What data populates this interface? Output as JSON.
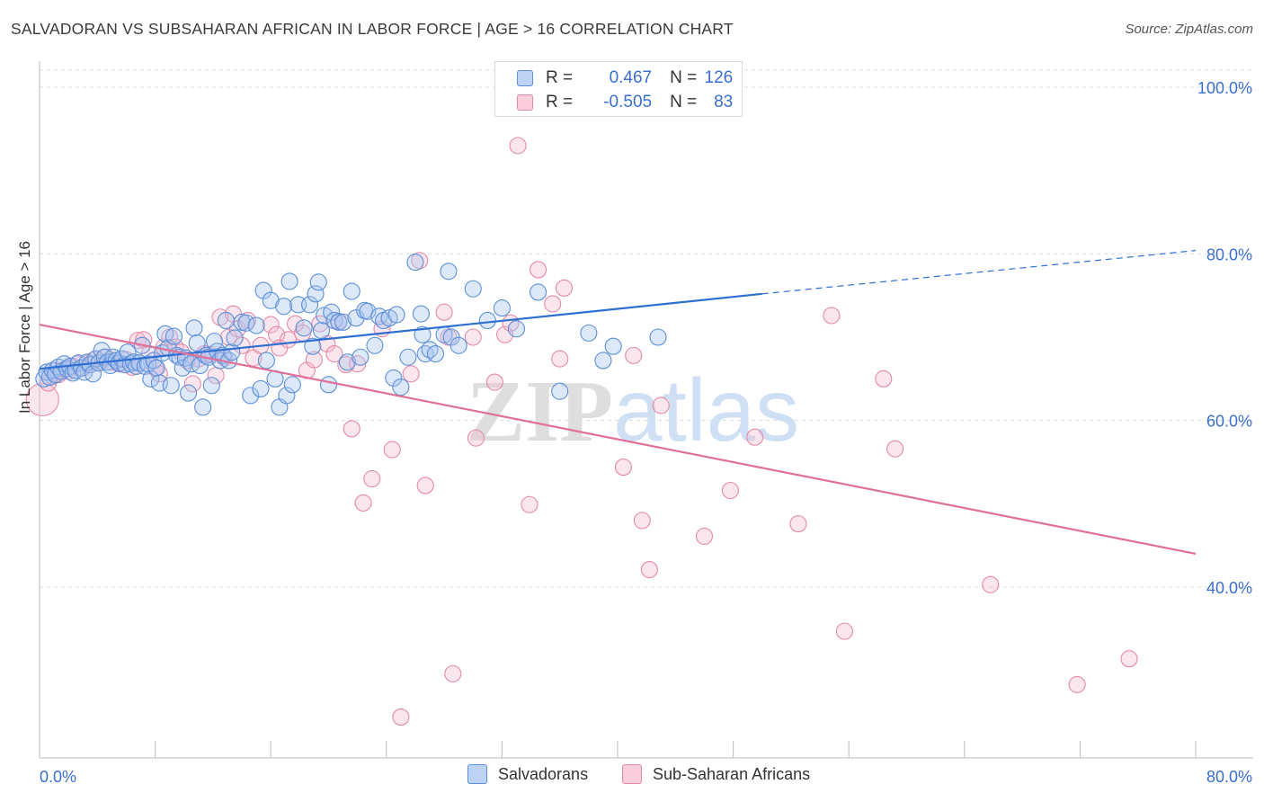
{
  "title": "SALVADORAN VS SUBSAHARAN AFRICAN IN LABOR FORCE | AGE > 16 CORRELATION CHART",
  "source": "Source: ZipAtlas.com",
  "watermark": "ZIPatlas",
  "legend": {
    "rows": [
      {
        "r_label": "R =",
        "r_value": "0.467",
        "n_label": "N =",
        "n_value": "126"
      },
      {
        "r_label": "R =",
        "r_value": "-0.505",
        "n_label": "N =",
        "n_value": "83"
      }
    ]
  },
  "colors": {
    "blue_fill": "#a9c6f0",
    "blue_stroke": "#5b8fd9",
    "blue_line": "#2f6fd1",
    "pink_fill": "#f5b8cc",
    "pink_stroke": "#e489a8",
    "pink_line": "#e0709a",
    "tick_text": "#3a6fcf",
    "grid": "#dcdcdc"
  },
  "chart_data": {
    "type": "scatter",
    "title": "SALVADORAN VS SUBSAHARAN AFRICAN IN LABOR FORCE | AGE > 16 CORRELATION CHART",
    "xlabel": "",
    "ylabel": "In Labor Force | Age > 16",
    "xlim": [
      0,
      80
    ],
    "ylim": [
      20,
      102
    ],
    "x_tick_labels": [
      "0.0%",
      "80.0%"
    ],
    "y_ticks": [
      40,
      60,
      80,
      100
    ],
    "y_tick_labels": [
      "40.0%",
      "60.0%",
      "80.0%",
      "100.0%"
    ],
    "grid": true,
    "legend_position": "bottom",
    "series": [
      {
        "name": "Salvadorans",
        "color": "#5b8fd9",
        "trend": {
          "x": [
            0,
            50
          ],
          "y": [
            66.2,
            75.2
          ],
          "dashed_to": [
            80,
            80.4
          ]
        },
        "points": [
          [
            0.3,
            65.0
          ],
          [
            0.5,
            65.8
          ],
          [
            0.7,
            65.2
          ],
          [
            0.9,
            66.0
          ],
          [
            1.1,
            65.5
          ],
          [
            1.3,
            66.4
          ],
          [
            1.5,
            65.9
          ],
          [
            1.7,
            66.8
          ],
          [
            1.9,
            66.2
          ],
          [
            2.1,
            66.5
          ],
          [
            2.3,
            65.7
          ],
          [
            2.5,
            66.0
          ],
          [
            2.7,
            66.9
          ],
          [
            2.9,
            66.3
          ],
          [
            3.1,
            65.8
          ],
          [
            3.3,
            67.0
          ],
          [
            3.5,
            66.7
          ],
          [
            3.7,
            65.6
          ],
          [
            3.9,
            67.4
          ],
          [
            4.1,
            66.9
          ],
          [
            4.3,
            68.4
          ],
          [
            4.5,
            67.6
          ],
          [
            4.7,
            67.0
          ],
          [
            4.9,
            66.6
          ],
          [
            5.1,
            67.6
          ],
          [
            5.3,
            67.2
          ],
          [
            5.5,
            66.9
          ],
          [
            5.7,
            67.4
          ],
          [
            5.9,
            66.7
          ],
          [
            6.1,
            68.2
          ],
          [
            6.3,
            66.8
          ],
          [
            6.5,
            67.0
          ],
          [
            6.7,
            66.5
          ],
          [
            6.9,
            66.9
          ],
          [
            7.1,
            69.0
          ],
          [
            7.3,
            66.5
          ],
          [
            7.5,
            66.8
          ],
          [
            7.7,
            65.0
          ],
          [
            7.9,
            67.2
          ],
          [
            8.1,
            66.3
          ],
          [
            8.3,
            64.5
          ],
          [
            8.5,
            68.1
          ],
          [
            8.7,
            70.4
          ],
          [
            8.9,
            68.7
          ],
          [
            9.1,
            64.2
          ],
          [
            9.3,
            70.1
          ],
          [
            9.5,
            67.8
          ],
          [
            9.7,
            67.6
          ],
          [
            9.9,
            66.3
          ],
          [
            10.1,
            67.5
          ],
          [
            10.3,
            63.3
          ],
          [
            10.5,
            66.8
          ],
          [
            10.7,
            71.1
          ],
          [
            10.9,
            69.3
          ],
          [
            11.1,
            66.6
          ],
          [
            11.3,
            61.6
          ],
          [
            11.5,
            67.8
          ],
          [
            11.7,
            67.6
          ],
          [
            11.9,
            64.2
          ],
          [
            12.1,
            69.5
          ],
          [
            12.3,
            68.3
          ],
          [
            12.5,
            67.2
          ],
          [
            12.7,
            67.8
          ],
          [
            12.9,
            72.0
          ],
          [
            13.1,
            67.2
          ],
          [
            13.3,
            68.2
          ],
          [
            13.5,
            69.9
          ],
          [
            14.0,
            71.8
          ],
          [
            14.3,
            71.7
          ],
          [
            14.6,
            63.0
          ],
          [
            15.0,
            71.4
          ],
          [
            15.3,
            63.8
          ],
          [
            15.5,
            75.6
          ],
          [
            15.7,
            67.2
          ],
          [
            16.0,
            74.4
          ],
          [
            16.3,
            65.0
          ],
          [
            16.6,
            61.6
          ],
          [
            16.9,
            73.7
          ],
          [
            17.1,
            63.0
          ],
          [
            17.3,
            76.7
          ],
          [
            17.5,
            64.3
          ],
          [
            17.9,
            73.9
          ],
          [
            18.3,
            71.1
          ],
          [
            18.7,
            73.9
          ],
          [
            18.9,
            68.9
          ],
          [
            19.1,
            75.2
          ],
          [
            19.3,
            76.6
          ],
          [
            19.5,
            70.8
          ],
          [
            19.7,
            72.6
          ],
          [
            20.0,
            64.3
          ],
          [
            20.2,
            73.0
          ],
          [
            20.4,
            72.0
          ],
          [
            20.7,
            71.8
          ],
          [
            21.0,
            71.8
          ],
          [
            21.3,
            67.0
          ],
          [
            21.6,
            75.5
          ],
          [
            21.9,
            72.3
          ],
          [
            22.2,
            67.6
          ],
          [
            22.5,
            73.2
          ],
          [
            22.7,
            73.1
          ],
          [
            23.2,
            69.0
          ],
          [
            23.5,
            72.5
          ],
          [
            23.8,
            72.0
          ],
          [
            24.2,
            72.3
          ],
          [
            24.5,
            65.1
          ],
          [
            24.7,
            72.7
          ],
          [
            25.0,
            64.0
          ],
          [
            25.5,
            67.6
          ],
          [
            26.0,
            79.0
          ],
          [
            26.4,
            72.8
          ],
          [
            26.5,
            70.3
          ],
          [
            26.7,
            68.0
          ],
          [
            27.0,
            68.5
          ],
          [
            27.4,
            68.0
          ],
          [
            28.0,
            70.3
          ],
          [
            28.3,
            77.9
          ],
          [
            28.5,
            70.0
          ],
          [
            29.0,
            69.0
          ],
          [
            30.0,
            75.8
          ],
          [
            31.0,
            72.0
          ],
          [
            32.0,
            73.5
          ],
          [
            33.0,
            71.0
          ],
          [
            34.5,
            75.4
          ],
          [
            36.0,
            63.5
          ],
          [
            38.0,
            70.5
          ],
          [
            39.0,
            67.2
          ],
          [
            39.7,
            68.9
          ],
          [
            42.8,
            70.0
          ]
        ]
      },
      {
        "name": "Sub-Saharan Africans",
        "color": "#e489a8",
        "trend": {
          "x": [
            0,
            80
          ],
          "y": [
            71.5,
            44.0
          ]
        },
        "points": [
          [
            0.2,
            62.5
          ],
          [
            0.6,
            64.5
          ],
          [
            0.9,
            65.3
          ],
          [
            1.1,
            66.0
          ],
          [
            1.3,
            65.5
          ],
          [
            1.7,
            66.1
          ],
          [
            2.0,
            65.9
          ],
          [
            2.3,
            66.5
          ],
          [
            2.6,
            66.8
          ],
          [
            3.0,
            66.3
          ],
          [
            3.4,
            66.9
          ],
          [
            3.8,
            67.3
          ],
          [
            4.2,
            67.1
          ],
          [
            4.6,
            67.6
          ],
          [
            5.0,
            67.0
          ],
          [
            5.5,
            66.8
          ],
          [
            6.0,
            67.3
          ],
          [
            6.4,
            66.4
          ],
          [
            6.8,
            69.6
          ],
          [
            7.2,
            69.7
          ],
          [
            7.6,
            68.0
          ],
          [
            8.0,
            66.3
          ],
          [
            8.3,
            65.6
          ],
          [
            8.6,
            68.8
          ],
          [
            9.0,
            70.0
          ],
          [
            9.4,
            68.8
          ],
          [
            9.8,
            68.2
          ],
          [
            10.2,
            67.2
          ],
          [
            10.6,
            64.4
          ],
          [
            11.0,
            67.4
          ],
          [
            11.4,
            68.0
          ],
          [
            11.8,
            67.9
          ],
          [
            12.2,
            65.4
          ],
          [
            12.5,
            72.4
          ],
          [
            12.8,
            67.5
          ],
          [
            13.1,
            70.0
          ],
          [
            13.4,
            72.8
          ],
          [
            13.7,
            71.0
          ],
          [
            14.0,
            69.0
          ],
          [
            14.4,
            72.0
          ],
          [
            14.8,
            67.5
          ],
          [
            15.3,
            69.0
          ],
          [
            16.0,
            71.5
          ],
          [
            16.4,
            70.3
          ],
          [
            16.6,
            68.7
          ],
          [
            17.2,
            69.7
          ],
          [
            17.7,
            71.6
          ],
          [
            18.2,
            70.5
          ],
          [
            18.5,
            66.0
          ],
          [
            19.0,
            67.3
          ],
          [
            19.4,
            71.6
          ],
          [
            19.9,
            69.2
          ],
          [
            20.4,
            68.0
          ],
          [
            20.7,
            71.9
          ],
          [
            21.2,
            66.7
          ],
          [
            21.6,
            59.0
          ],
          [
            22.0,
            66.8
          ],
          [
            22.4,
            50.1
          ],
          [
            23.0,
            53.0
          ],
          [
            23.7,
            71.0
          ],
          [
            24.4,
            56.5
          ],
          [
            25.0,
            24.4
          ],
          [
            25.7,
            65.6
          ],
          [
            26.3,
            79.2
          ],
          [
            26.7,
            52.2
          ],
          [
            28.0,
            73.0
          ],
          [
            28.3,
            70.0
          ],
          [
            28.6,
            29.6
          ],
          [
            30.0,
            70.0
          ],
          [
            30.2,
            57.9
          ],
          [
            31.5,
            64.6
          ],
          [
            32.2,
            70.3
          ],
          [
            32.6,
            71.7
          ],
          [
            33.1,
            93.0
          ],
          [
            33.9,
            49.9
          ],
          [
            34.5,
            78.1
          ],
          [
            35.5,
            74.0
          ],
          [
            36.0,
            67.4
          ],
          [
            36.3,
            75.9
          ],
          [
            40.4,
            54.4
          ],
          [
            41.1,
            67.8
          ],
          [
            41.7,
            48.0
          ],
          [
            42.2,
            42.1
          ],
          [
            43.0,
            61.8
          ],
          [
            46.0,
            46.1
          ],
          [
            47.8,
            51.6
          ],
          [
            49.5,
            58.0
          ],
          [
            52.5,
            47.6
          ],
          [
            54.8,
            72.6
          ],
          [
            55.7,
            34.7
          ],
          [
            58.4,
            65.0
          ],
          [
            59.2,
            56.6
          ],
          [
            65.8,
            40.3
          ],
          [
            71.8,
            28.3
          ],
          [
            75.4,
            31.4
          ]
        ]
      }
    ]
  }
}
